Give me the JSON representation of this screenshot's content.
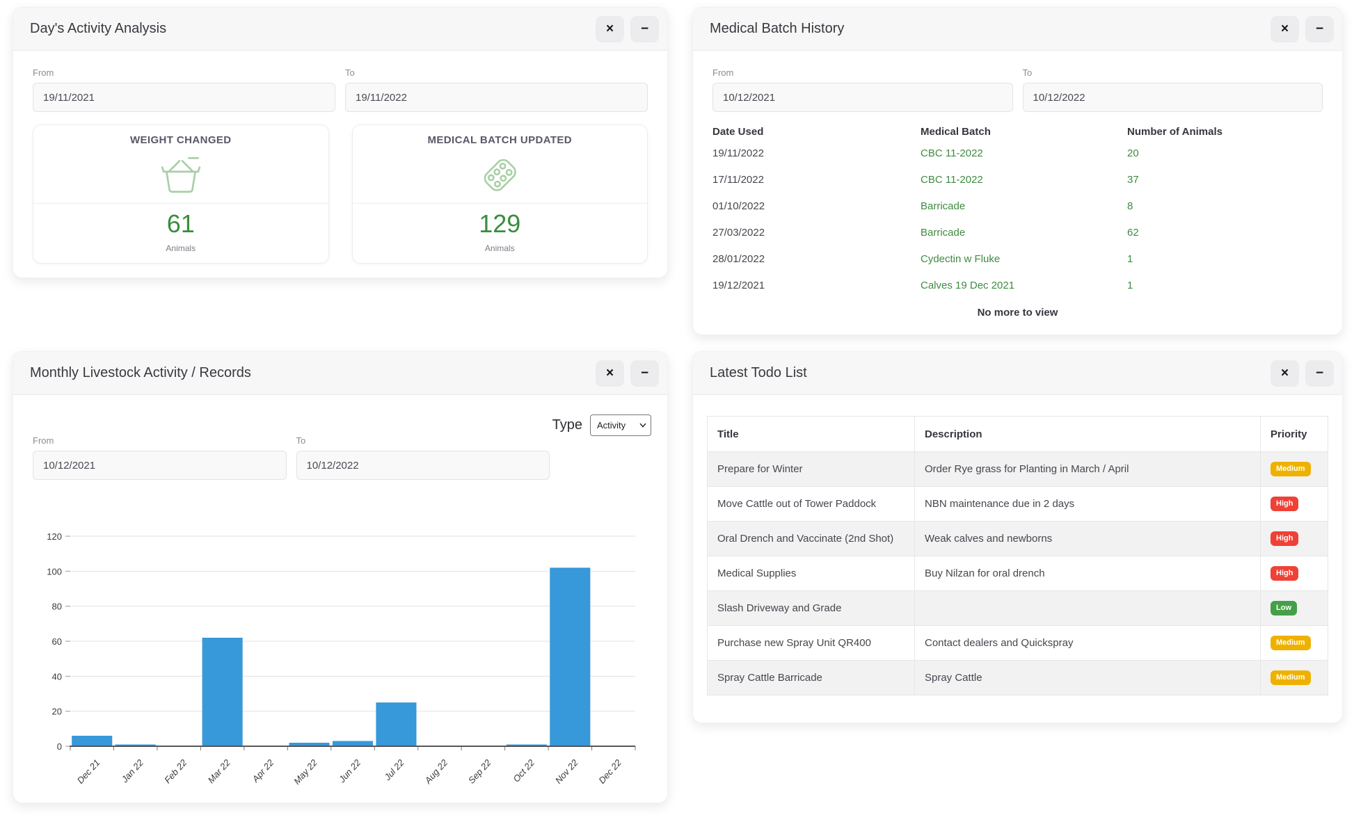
{
  "icons": {
    "close_glyph": "×",
    "minimize_glyph": "−"
  },
  "theme": {
    "header_bg": "#f7f7f8",
    "stat_green": "#388e3c",
    "icon_green": "#a8cfa6",
    "link_green": "#3d8b40",
    "stripe_bg": "#f2f2f3"
  },
  "panels": {
    "activity": {
      "title": "Day's Activity Analysis",
      "from_label": "From",
      "to_label": "To",
      "from_value": "19/11/2021",
      "to_value": "19/11/2022",
      "cards": [
        {
          "title": "WEIGHT CHANGED",
          "icon": "weight-basket-icon",
          "value": "61",
          "unit": "Animals"
        },
        {
          "title": "MEDICAL BATCH UPDATED",
          "icon": "medicine-blister-icon",
          "value": "129",
          "unit": "Animals"
        }
      ]
    },
    "medical": {
      "title": "Medical Batch History",
      "from_label": "From",
      "to_label": "To",
      "from_value": "10/12/2021",
      "to_value": "10/12/2022",
      "columns": [
        "Date Used",
        "Medical Batch",
        "Number of Animals"
      ],
      "rows": [
        {
          "date": "19/11/2022",
          "batch": "CBC 11-2022",
          "animals": "20"
        },
        {
          "date": "17/11/2022",
          "batch": "CBC 11-2022",
          "animals": "37"
        },
        {
          "date": "01/10/2022",
          "batch": "Barricade",
          "animals": "8"
        },
        {
          "date": "27/03/2022",
          "batch": "Barricade",
          "animals": "62"
        },
        {
          "date": "28/01/2022",
          "batch": "Cydectin w Fluke",
          "animals": "1"
        },
        {
          "date": "19/12/2021",
          "batch": "Calves 19 Dec 2021",
          "animals": "1"
        }
      ],
      "footer": "No more to view"
    },
    "monthly": {
      "title": "Monthly Livestock Activity / Records",
      "type_label": "Type",
      "type_value": "Activity",
      "from_label": "From",
      "to_label": "To",
      "from_value": "10/12/2021",
      "to_value": "10/12/2022"
    },
    "todo": {
      "title": "Latest Todo List",
      "columns": [
        "Title",
        "Description",
        "Priority"
      ],
      "rows": [
        {
          "title": "Prepare for Winter",
          "description": "Order Rye grass for Planting in March / April",
          "priority": "Medium"
        },
        {
          "title": "Move Cattle out of Tower Paddock",
          "description": "NBN maintenance due in 2 days",
          "priority": "High"
        },
        {
          "title": "Oral Drench and Vaccinate (2nd Shot)",
          "description": "Weak calves and newborns",
          "priority": "High"
        },
        {
          "title": "Medical Supplies",
          "description": "Buy Nilzan for oral drench",
          "priority": "High"
        },
        {
          "title": "Slash Driveway and Grade",
          "description": "",
          "priority": "Low"
        },
        {
          "title": "Purchase new Spray Unit QR400",
          "description": "Contact dealers and Quickspray",
          "priority": "Medium"
        },
        {
          "title": "Spray Cattle Barricade",
          "description": "Spray Cattle",
          "priority": "Medium"
        }
      ],
      "priority_colors": {
        "High": "#ef4136",
        "Medium": "#efb100",
        "Low": "#43a047"
      }
    }
  },
  "chart_data": {
    "type": "bar",
    "title": "",
    "xlabel": "",
    "ylabel": "",
    "categories": [
      "Dec 21",
      "Jan 22",
      "Feb 22",
      "Mar 22",
      "Apr 22",
      "May 22",
      "Jun 22",
      "Jul 22",
      "Aug 22",
      "Sep 22",
      "Oct 22",
      "Nov 22",
      "Dec 22"
    ],
    "values": [
      6,
      1,
      0,
      62,
      0,
      2,
      3,
      25,
      0,
      0,
      1,
      102,
      0
    ],
    "ylim": [
      0,
      120
    ],
    "yticks": [
      0,
      20,
      40,
      60,
      80,
      100,
      120
    ],
    "bar_color": "#3798da",
    "grid": true,
    "legend": "none"
  }
}
